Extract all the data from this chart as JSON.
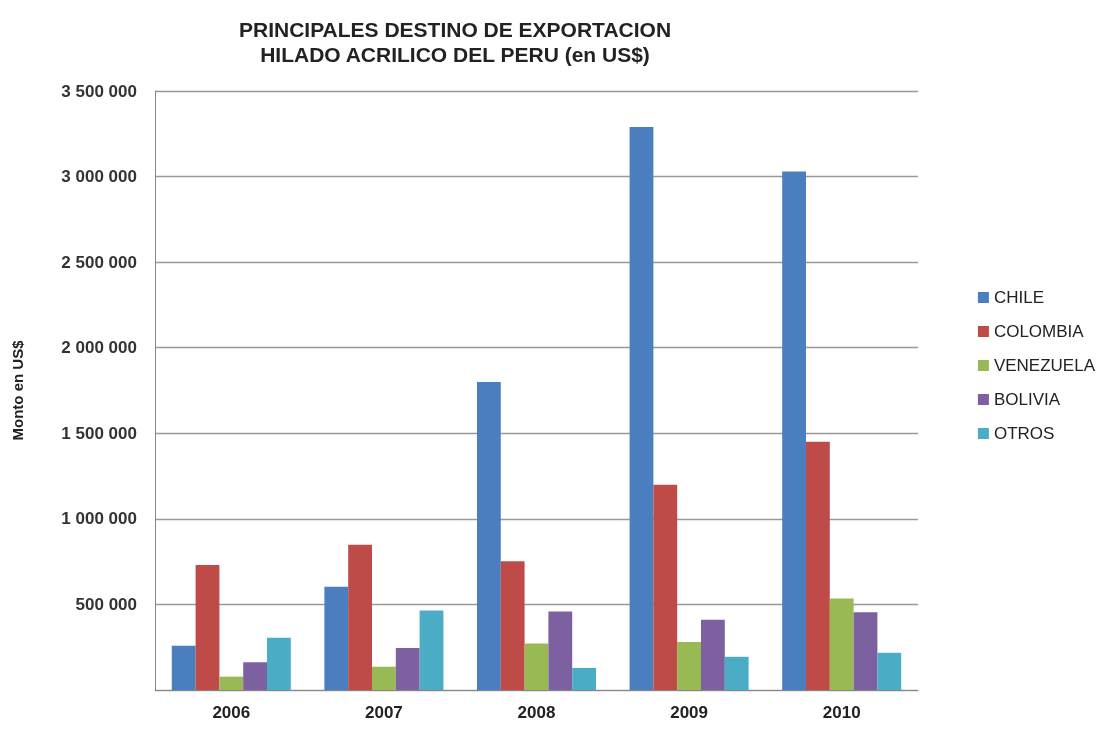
{
  "chart_data": {
    "type": "bar",
    "title": "PRINCIPALES DESTINO DE EXPORTACION\nHILADO ACRILICO DEL PERU (en US$)",
    "ylabel": "Monto en US$",
    "categories": [
      "2006",
      "2007",
      "2008",
      "2009",
      "2010"
    ],
    "series": [
      {
        "name": "CHILE",
        "color": "#4a7ebf",
        "values": [
          259000,
          604000,
          1800000,
          3290000,
          3030000
        ]
      },
      {
        "name": "COLOMBIA",
        "color": "#be4b48",
        "values": [
          731000,
          848000,
          752000,
          1200000,
          1450000
        ]
      },
      {
        "name": "VENEZUELA",
        "color": "#98b954",
        "values": [
          78000,
          136000,
          271000,
          281000,
          535000
        ]
      },
      {
        "name": "BOLIVIA",
        "color": "#7d60a0",
        "values": [
          162000,
          246000,
          459000,
          410000,
          455000
        ]
      },
      {
        "name": "OTROS",
        "color": "#4bacc6",
        "values": [
          306000,
          464000,
          129000,
          194000,
          218000
        ]
      }
    ],
    "ylim": [
      0,
      3500000
    ],
    "yticks": [
      {
        "value": 0,
        "label": null
      },
      {
        "value": 500000,
        "label": "500 000"
      },
      {
        "value": 1000000,
        "label": "1 000 000"
      },
      {
        "value": 1500000,
        "label": "1 500 000"
      },
      {
        "value": 2000000,
        "label": "2 000 000"
      },
      {
        "value": 2500000,
        "label": "2 500 000"
      },
      {
        "value": 3000000,
        "label": "3 000 000"
      },
      {
        "value": 3500000,
        "label": "3 500 000"
      }
    ],
    "grid": "y",
    "legend": "right"
  }
}
